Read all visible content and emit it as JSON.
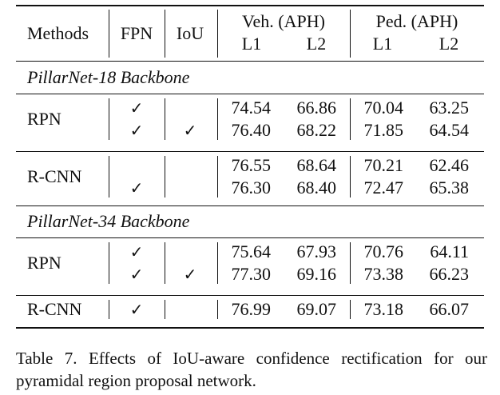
{
  "table": {
    "headers": {
      "methods": "Methods",
      "fpn": "FPN",
      "iou": "IoU",
      "veh": "Veh. (APH)",
      "ped": "Ped. (APH)",
      "l1": "L1",
      "l2": "L2"
    },
    "check_symbol": "✓",
    "sections": [
      {
        "title": "PillarNet-18 Backbone",
        "groups": [
          {
            "method": "RPN",
            "rows": [
              {
                "fpn": true,
                "iou": false,
                "values": [
                  "74.54",
                  "66.86",
                  "70.04",
                  "63.25"
                ]
              },
              {
                "fpn": true,
                "iou": true,
                "values": [
                  "76.40",
                  "68.22",
                  "71.85",
                  "64.54"
                ]
              }
            ]
          },
          {
            "method": "R-CNN",
            "rows": [
              {
                "fpn": false,
                "iou": false,
                "values": [
                  "76.55",
                  "68.64",
                  "70.21",
                  "62.46"
                ]
              },
              {
                "fpn": true,
                "iou": false,
                "values": [
                  "76.30",
                  "68.40",
                  "72.47",
                  "65.38"
                ]
              }
            ]
          }
        ]
      },
      {
        "title": "PillarNet-34 Backbone",
        "groups": [
          {
            "method": "RPN",
            "rows": [
              {
                "fpn": true,
                "iou": false,
                "values": [
                  "75.64",
                  "67.93",
                  "70.76",
                  "64.11"
                ]
              },
              {
                "fpn": true,
                "iou": true,
                "values": [
                  "77.30",
                  "69.16",
                  "73.38",
                  "66.23"
                ]
              }
            ]
          },
          {
            "method": "R-CNN",
            "rows": [
              {
                "fpn": true,
                "iou": false,
                "values": [
                  "76.99",
                  "69.07",
                  "73.18",
                  "66.07"
                ]
              }
            ]
          }
        ]
      }
    ]
  },
  "caption": {
    "line1": "Table 7.  Effects of IoU-aware confidence rectification for our",
    "line2": "pyramidal region proposal network."
  }
}
